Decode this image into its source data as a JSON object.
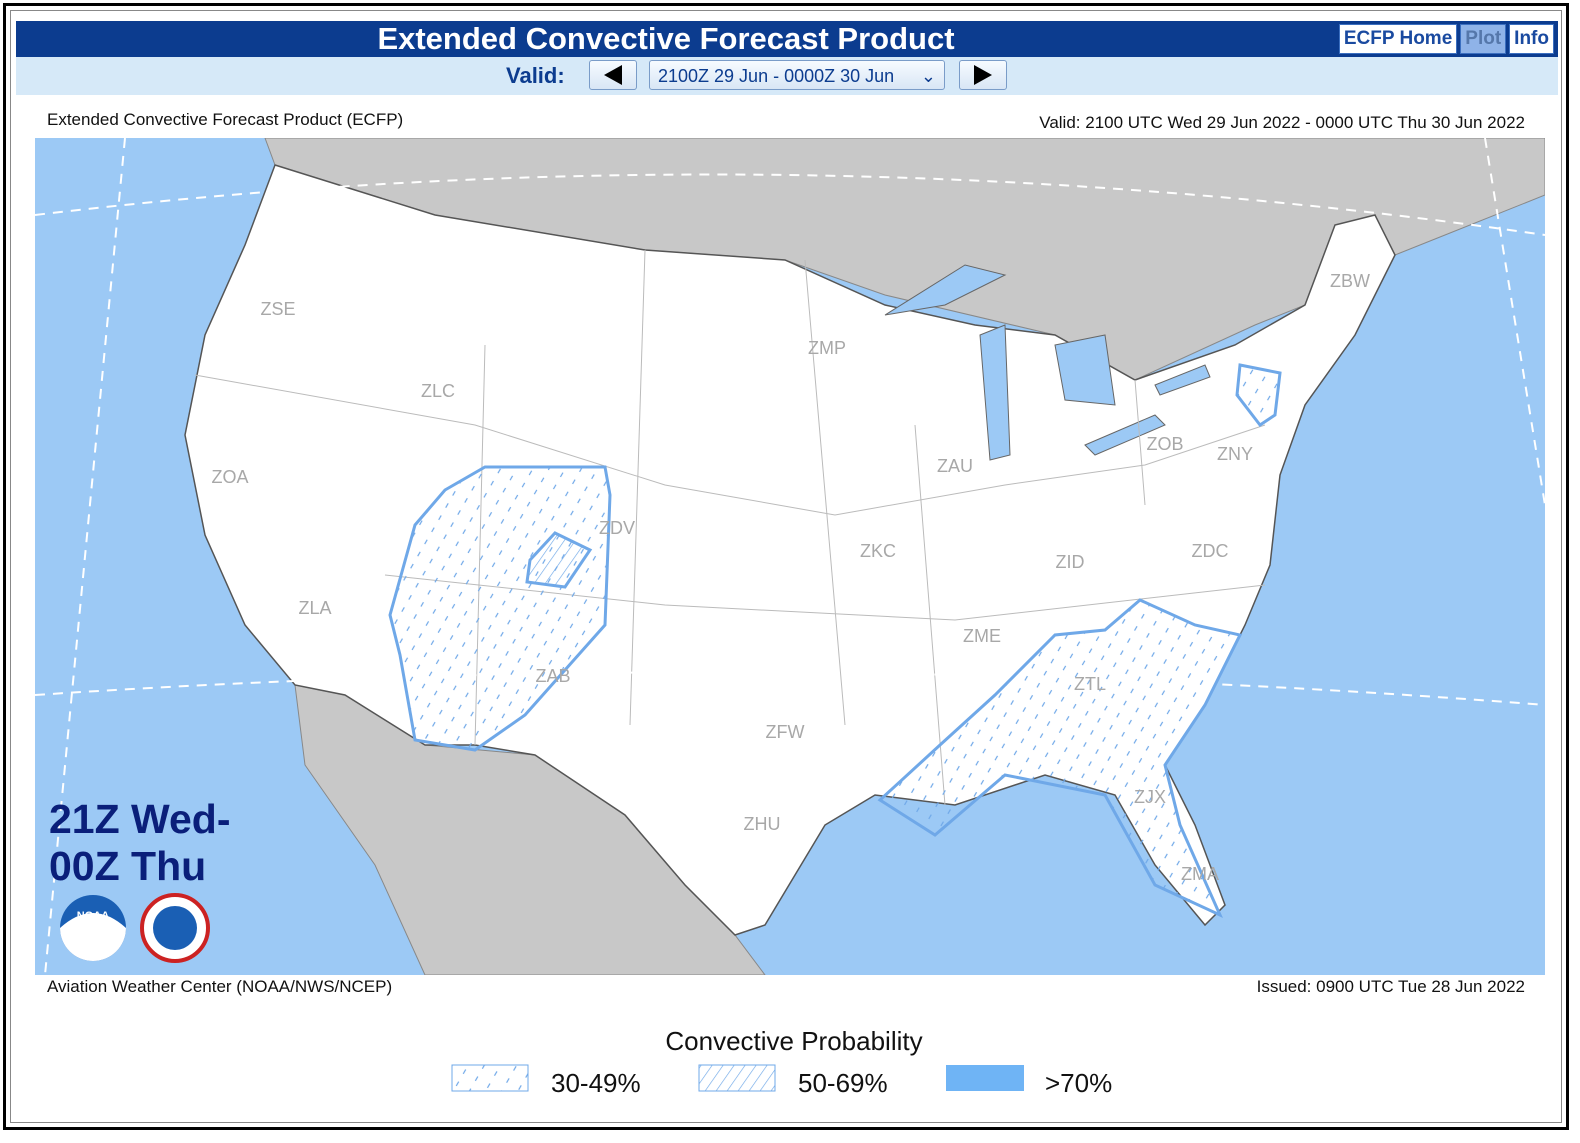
{
  "header": {
    "title": "Extended Convective Forecast Product",
    "buttons": [
      "ECFP Home",
      "Plot",
      "Info"
    ],
    "valid_label": "Valid:",
    "selected_period": "2100Z 29 Jun - 0000Z 30 Jun"
  },
  "map": {
    "top_left": "Extended Convective Forecast Product (ECFP)",
    "top_right": "Valid: 2100 UTC Wed 29 Jun 2022 - 0000 UTC Thu 30 Jun 2022",
    "period_label": [
      "21Z Wed-",
      "00Z Thu"
    ],
    "centers": [
      "ZSE",
      "ZLC",
      "ZOA",
      "ZLA",
      "ZDV",
      "ZAB",
      "ZMP",
      "ZKC",
      "ZFW",
      "ZHU",
      "ZAU",
      "ZID",
      "ZME",
      "ZTL",
      "ZJX",
      "ZMA",
      "ZOB",
      "ZNY",
      "ZDC",
      "ZBW"
    ],
    "logos": [
      "NOAA"
    ],
    "bottom_left": "Aviation Weather Center (NOAA/NWS/NCEP)",
    "bottom_right": "Issued: 0900 UTC Tue 28 Jun 2022"
  },
  "legend": {
    "title": "Convective Probability",
    "items": [
      "30-49%",
      "50-69%",
      ">70%"
    ]
  }
}
